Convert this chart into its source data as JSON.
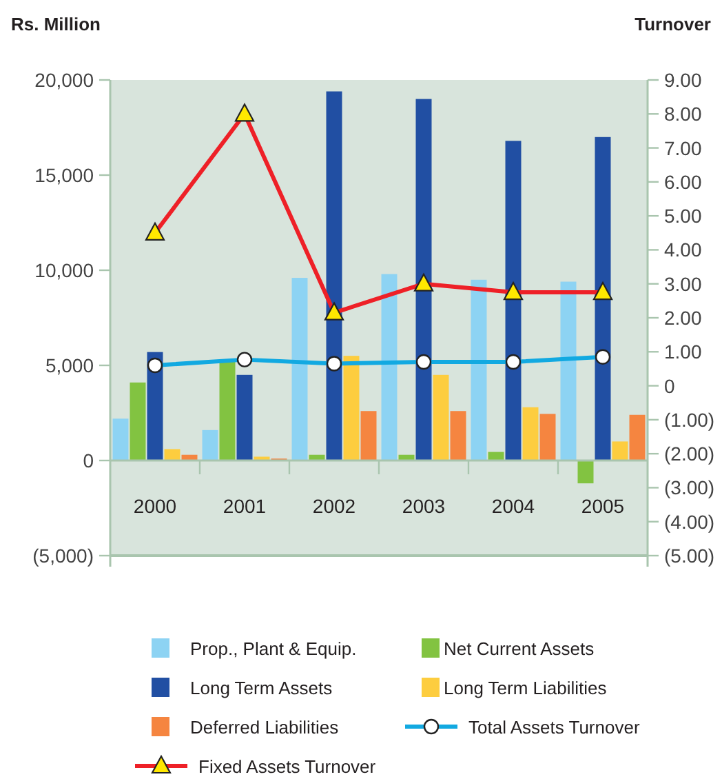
{
  "chart_data": {
    "type": "bar",
    "ylabel": "Rs. Million",
    "y2label": "Turnover",
    "categories": [
      "2000",
      "2001",
      "2002",
      "2003",
      "2004",
      "2005"
    ],
    "series": [
      {
        "name": "Prop., Plant & Equip.",
        "color": "#8dd3f3",
        "values": [
          2200,
          1600,
          9600,
          9800,
          9500,
          9400
        ]
      },
      {
        "name": "Net Current Assets",
        "color": "#82c341",
        "values": [
          4100,
          5300,
          300,
          300,
          450,
          -1200
        ]
      },
      {
        "name": "Long Term Assets",
        "color": "#214fa3",
        "values": [
          5700,
          4500,
          19400,
          19000,
          16800,
          17000
        ]
      },
      {
        "name": "Long Term Liabilities",
        "color": "#fdcd3f",
        "values": [
          600,
          200,
          5500,
          4500,
          2800,
          1000
        ]
      },
      {
        "name": "Deferred Liabilities",
        "color": "#f58540",
        "values": [
          300,
          100,
          2600,
          2600,
          2450,
          2400
        ]
      },
      {
        "name": "Total Assets Turnover",
        "type": "line",
        "axis": "y2",
        "marker": "circle",
        "color": "#12a9e1",
        "values": [
          0.6,
          0.77,
          0.65,
          0.7,
          0.7,
          0.85
        ]
      },
      {
        "name": "Fixed Assets Turnover",
        "type": "line",
        "axis": "y2",
        "marker": "triangle",
        "color": "#ee2027",
        "values": [
          4.5,
          8.0,
          2.15,
          3.0,
          2.75,
          2.75
        ]
      }
    ],
    "ylim": [
      -5000,
      20000
    ],
    "yticks": [
      {
        "value": -5000,
        "label": "(5,000)"
      },
      {
        "value": 0,
        "label": "0"
      },
      {
        "value": 5000,
        "label": "5,000"
      },
      {
        "value": 10000,
        "label": "10,000"
      },
      {
        "value": 15000,
        "label": "15,000"
      },
      {
        "value": 20000,
        "label": "20,000"
      }
    ],
    "y2lim": [
      -5,
      9
    ],
    "y2ticks": [
      {
        "value": -5,
        "label": "(5.00)"
      },
      {
        "value": -4,
        "label": "(4.00)"
      },
      {
        "value": -3,
        "label": "(3.00)"
      },
      {
        "value": -2,
        "label": "(2.00)"
      },
      {
        "value": -1,
        "label": "(1.00)"
      },
      {
        "value": 0,
        "label": "0"
      },
      {
        "value": 1,
        "label": "1.00"
      },
      {
        "value": 2,
        "label": "2.00"
      },
      {
        "value": 3,
        "label": "3.00"
      },
      {
        "value": 4,
        "label": "4.00"
      },
      {
        "value": 5,
        "label": "5.00"
      },
      {
        "value": 6,
        "label": "6.00"
      },
      {
        "value": 7,
        "label": "7.00"
      },
      {
        "value": 8,
        "label": "8.00"
      },
      {
        "value": 9,
        "label": "9.00"
      }
    ],
    "legend": "bottom",
    "grid": false
  }
}
